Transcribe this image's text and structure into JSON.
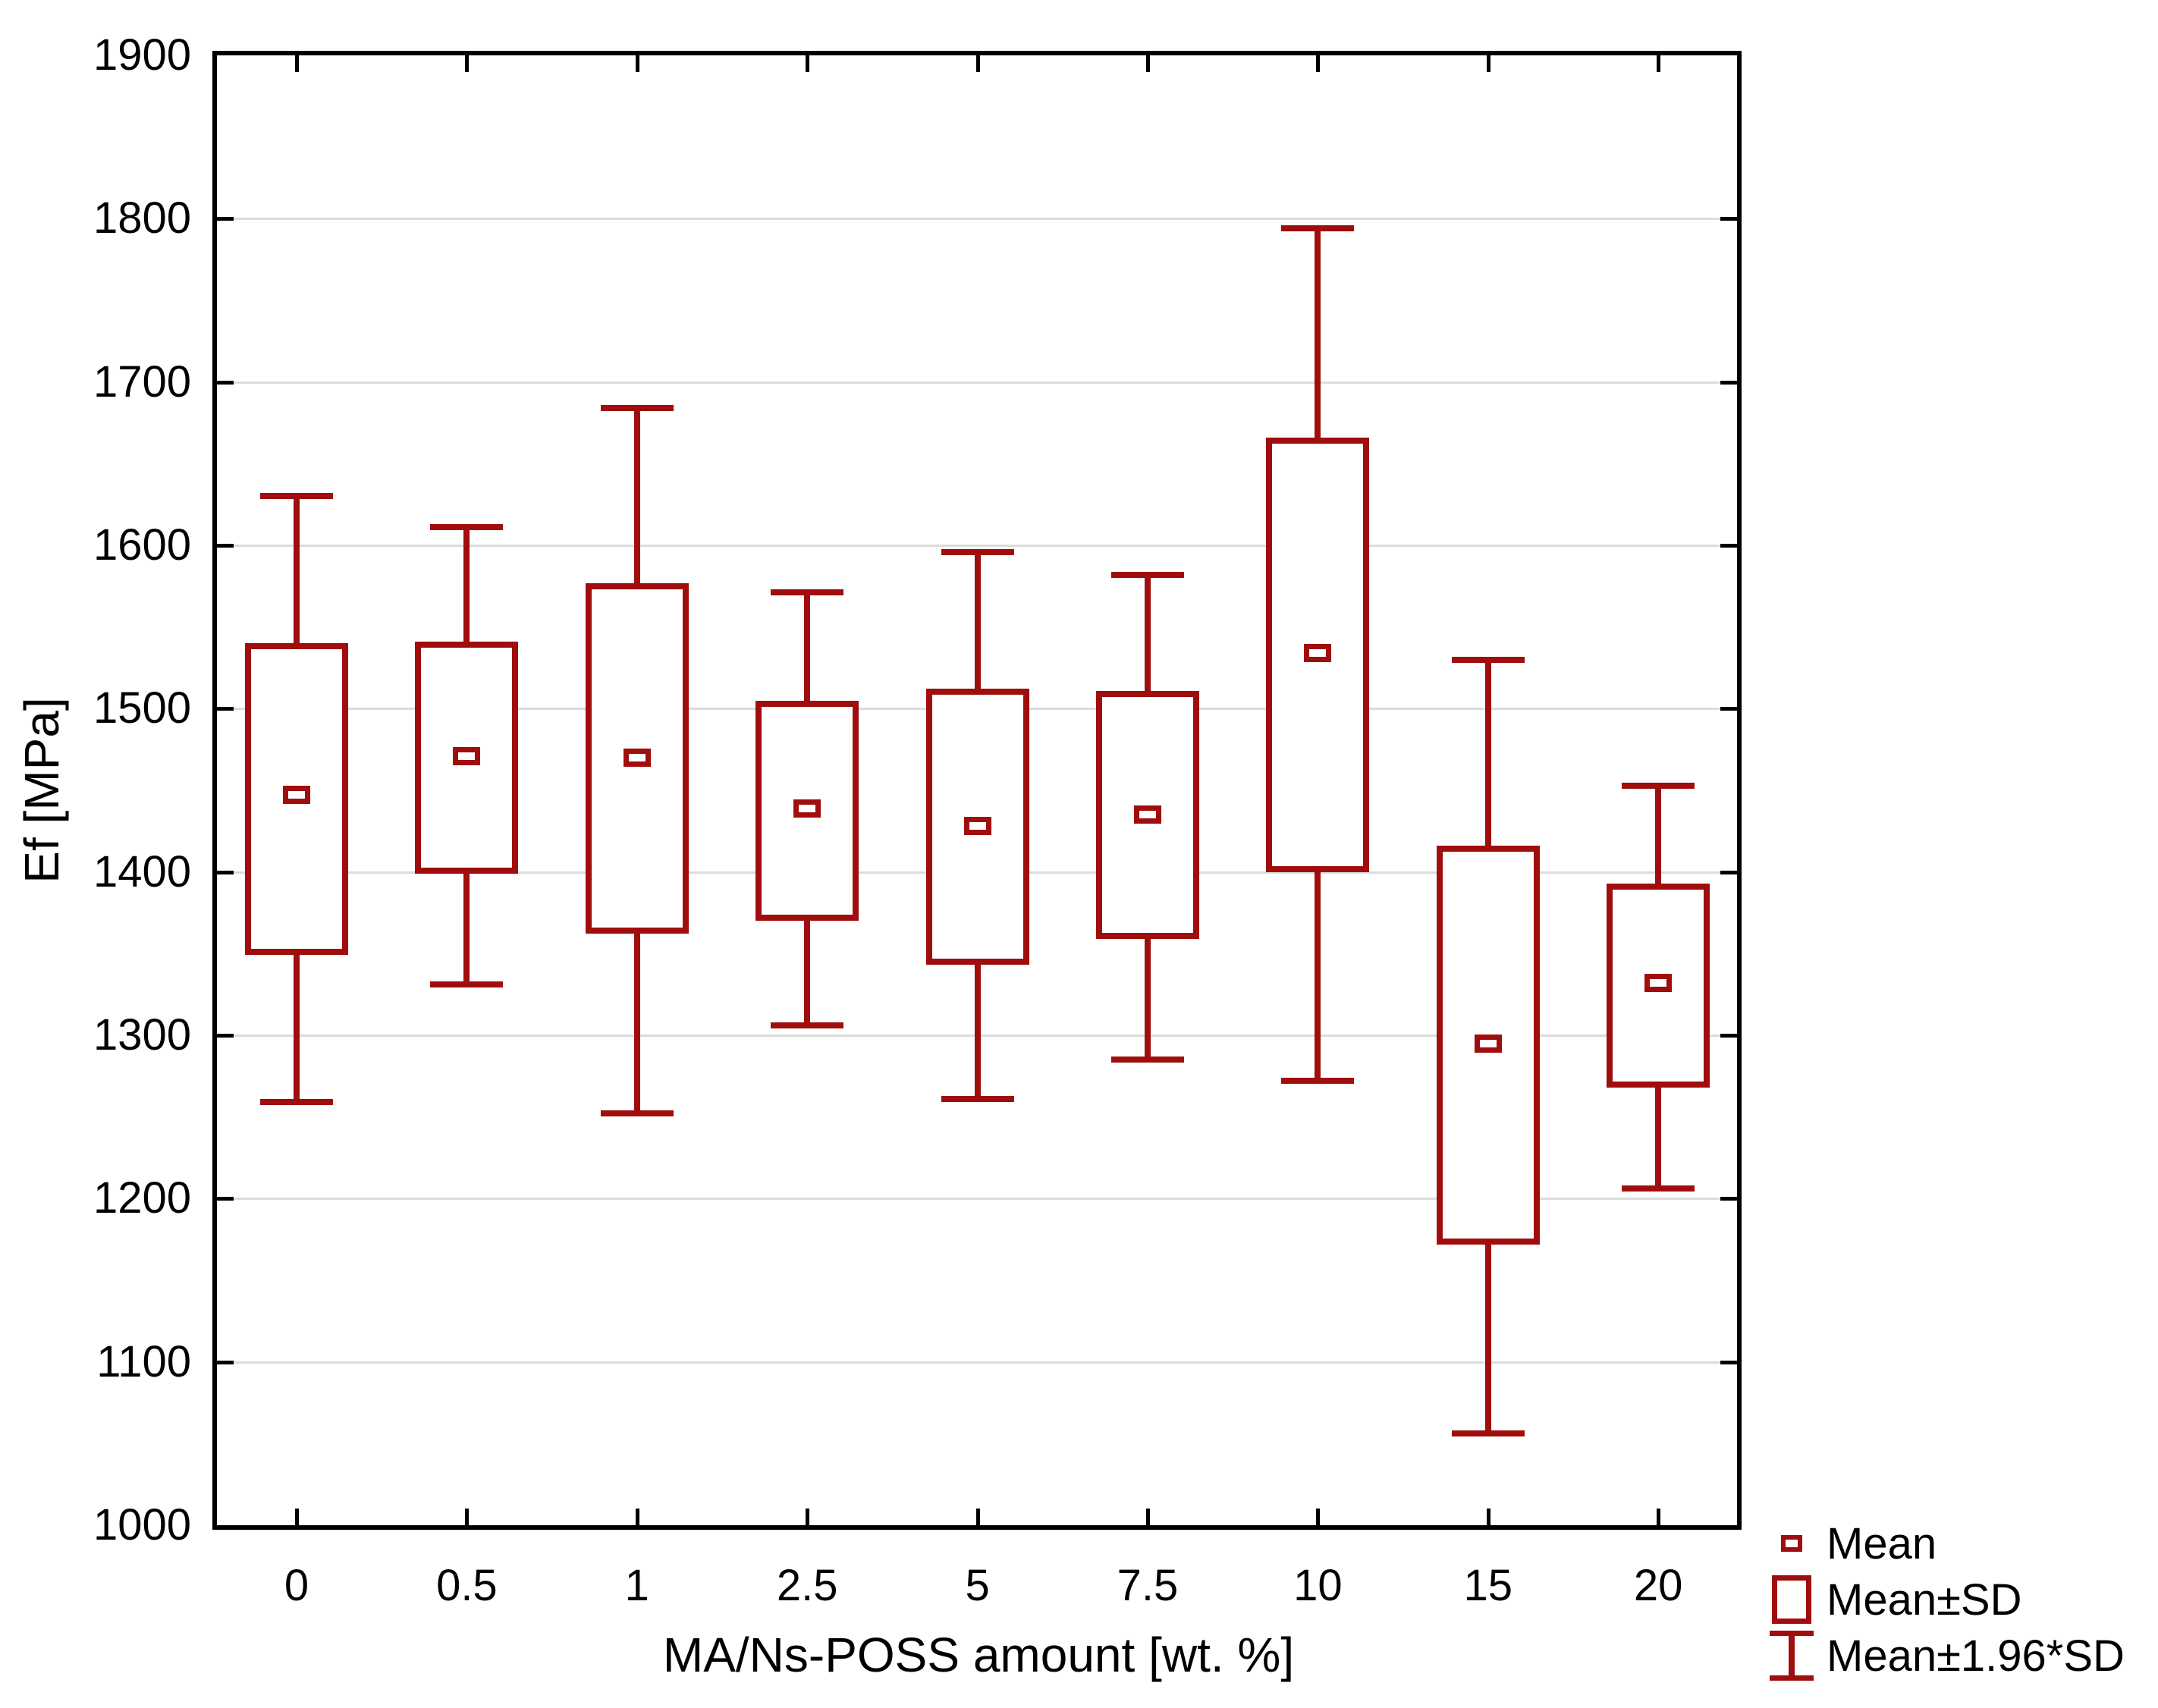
{
  "chart_data": {
    "type": "box",
    "variant": "mean-sd-whisker",
    "xlabel": "MA/Ns-POSS amount [wt. %]",
    "ylabel": "Ef [MPa]",
    "ylim": [
      1000,
      1900
    ],
    "ytick_step": 100,
    "ytick_labels": [
      "1000",
      "1100",
      "1200",
      "1300",
      "1400",
      "1500",
      "1600",
      "1700",
      "1800",
      "1900"
    ],
    "grid": "horizontal",
    "categories": [
      "0",
      "0.5",
      "1",
      "2.5",
      "5",
      "7.5",
      "10",
      "15",
      "20"
    ],
    "series": [
      {
        "category": "0",
        "mean": 1447,
        "sd_high": 1540,
        "sd_low": 1349,
        "whisker_high": 1630,
        "whisker_low": 1259
      },
      {
        "category": "0.5",
        "mean": 1471,
        "sd_high": 1541,
        "sd_low": 1399,
        "whisker_high": 1611,
        "whisker_low": 1331
      },
      {
        "category": "1",
        "mean": 1470,
        "sd_high": 1577,
        "sd_low": 1362,
        "whisker_high": 1684,
        "whisker_low": 1252
      },
      {
        "category": "2.5",
        "mean": 1439,
        "sd_high": 1505,
        "sd_low": 1370,
        "whisker_high": 1571,
        "whisker_low": 1306
      },
      {
        "category": "5",
        "mean": 1428,
        "sd_high": 1512,
        "sd_low": 1343,
        "whisker_high": 1596,
        "whisker_low": 1261
      },
      {
        "category": "7.5",
        "mean": 1435,
        "sd_high": 1511,
        "sd_low": 1359,
        "whisker_high": 1582,
        "whisker_low": 1285
      },
      {
        "category": "10",
        "mean": 1534,
        "sd_high": 1666,
        "sd_low": 1400,
        "whisker_high": 1794,
        "whisker_low": 1272
      },
      {
        "category": "15",
        "mean": 1295,
        "sd_high": 1416,
        "sd_low": 1172,
        "whisker_high": 1530,
        "whisker_low": 1056
      },
      {
        "category": "20",
        "mean": 1332,
        "sd_high": 1393,
        "sd_low": 1268,
        "whisker_high": 1453,
        "whisker_low": 1206
      }
    ],
    "legend": [
      {
        "symbol": "mean-square",
        "label": "Mean"
      },
      {
        "symbol": "sd-box",
        "label": "Mean±SD"
      },
      {
        "symbol": "whisker-bar",
        "label": "Mean±1.96*SD"
      }
    ],
    "legend_position": "bottom-right-outside",
    "colors": {
      "series": "#A00D0D",
      "grid": "#DCDCDC",
      "axis": "#000000",
      "text": "#000000",
      "background": "#FFFFFF"
    }
  }
}
